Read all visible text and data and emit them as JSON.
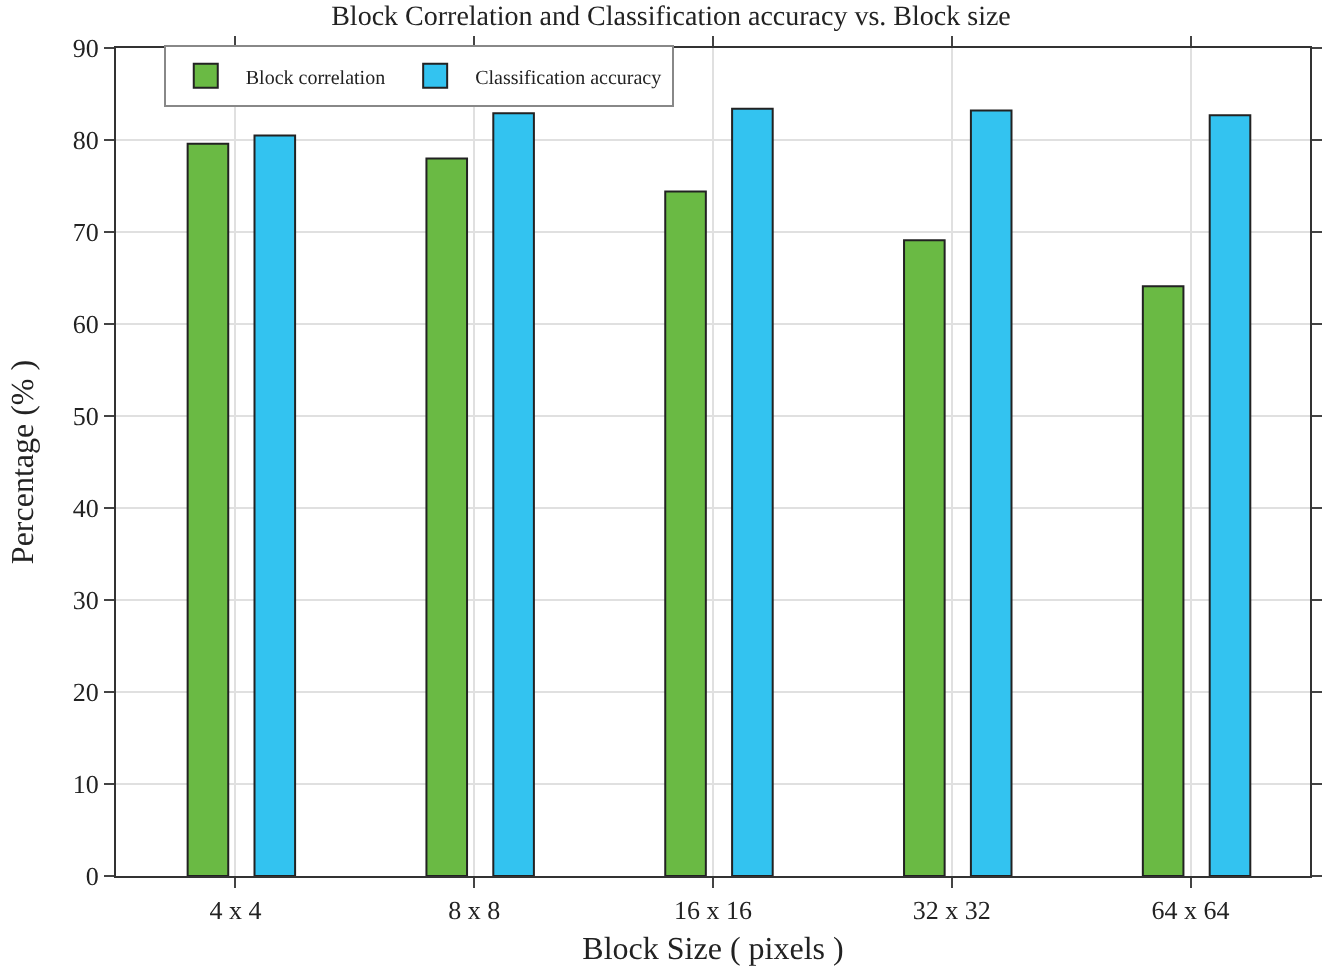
{
  "chart_data": {
    "type": "bar",
    "title": "Block Correlation and Classification accuracy vs. Block size",
    "xlabel": "Block Size ( pixels )",
    "ylabel": "Percentage (% )",
    "categories": [
      "4 x 4",
      "8 x 8",
      "16 x 16",
      "32 x 32",
      "64 x 64"
    ],
    "series": [
      {
        "name": "Block correlation",
        "color": "#6aba44",
        "values": [
          79.6,
          78.0,
          74.4,
          69.1,
          64.1
        ]
      },
      {
        "name": "Classification accuracy",
        "color": "#33c3f0",
        "values": [
          80.5,
          82.9,
          83.4,
          83.2,
          82.7
        ]
      }
    ],
    "ylim": [
      0,
      90
    ],
    "yticks": [
      0,
      10,
      20,
      30,
      40,
      50,
      60,
      70,
      80,
      90
    ],
    "grid": true,
    "legend": "top left"
  }
}
